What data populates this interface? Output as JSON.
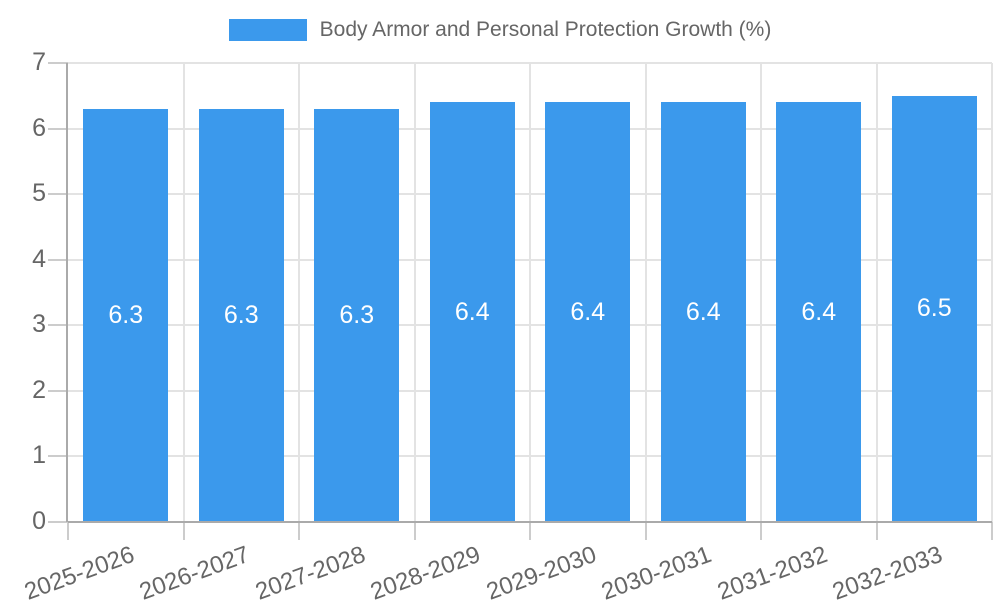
{
  "legend": {
    "label": "Body Armor and Personal Protection Growth (%)"
  },
  "chart_data": {
    "type": "bar",
    "title": "Body Armor and Personal Protection Growth (%)",
    "categories": [
      "2025-2026",
      "2026-2027",
      "2027-2028",
      "2028-2029",
      "2029-2030",
      "2030-2031",
      "2031-2032",
      "2032-2033"
    ],
    "values": [
      6.3,
      6.3,
      6.3,
      6.4,
      6.4,
      6.4,
      6.4,
      6.5
    ],
    "value_labels": [
      "6.3",
      "6.3",
      "6.3",
      "6.4",
      "6.4",
      "6.4",
      "6.4",
      "6.5"
    ],
    "xlabel": "",
    "ylabel": "",
    "ylim": [
      0,
      7
    ],
    "ytick_step": 1,
    "ytick_labels": [
      "0",
      "1",
      "2",
      "3",
      "4",
      "5",
      "6",
      "7"
    ],
    "grid": true,
    "legend_position": "top",
    "x_label_rotation_deg": -20,
    "colors": {
      "bar": "#3b99ec",
      "bar_label": "#ffffff",
      "axis_text": "#666666",
      "grid_line": "#e3e3e3",
      "axis_line": "#aaaaaa",
      "tick": "#cccccc",
      "background": "#ffffff"
    }
  }
}
